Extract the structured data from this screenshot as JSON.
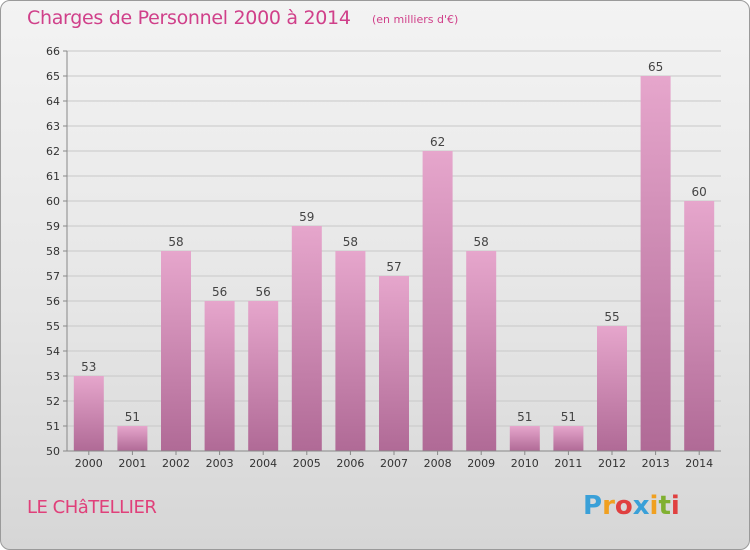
{
  "chart_data": {
    "type": "bar",
    "title": "Charges de Personnel 2000 à 2014",
    "subtitle": "(en milliers d'€)",
    "categories": [
      "2000",
      "2001",
      "2002",
      "2003",
      "2004",
      "2005",
      "2006",
      "2007",
      "2008",
      "2009",
      "2010",
      "2011",
      "2012",
      "2013",
      "2014"
    ],
    "values": [
      53,
      51,
      58,
      56,
      56,
      59,
      58,
      57,
      62,
      58,
      51,
      51,
      55,
      65,
      60
    ],
    "ylim": [
      50,
      66
    ],
    "yticks": [
      50,
      51,
      52,
      53,
      54,
      55,
      56,
      57,
      58,
      59,
      60,
      61,
      62,
      63,
      64,
      65,
      66
    ],
    "grid": true,
    "xlabel": "",
    "ylabel": ""
  },
  "commune": "LE CHâTELLIER",
  "logo": {
    "letters": [
      "P",
      "r",
      "o",
      "x",
      "i",
      "t",
      "i"
    ],
    "colors": [
      "#3aa0d8",
      "#f0a020",
      "#e04040",
      "#3aa0d8",
      "#f0a020",
      "#80b030",
      "#e04040"
    ]
  },
  "colors": {
    "bar_top": "#e6a6cc",
    "bar_bottom": "#b06a96",
    "text": "#d0408a"
  }
}
